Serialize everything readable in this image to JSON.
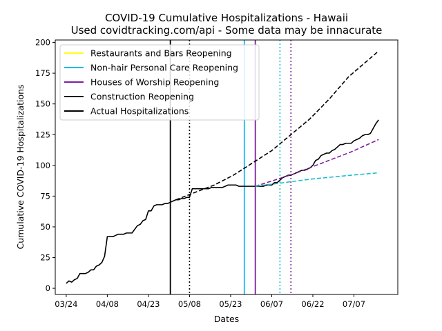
{
  "chart_data": {
    "type": "line",
    "title": "COVID-19 Cumulative Hospitalizations - Hawaii",
    "subtitle": "Used covidtracking.com/api - Some data may be innacurate",
    "xlabel": "Dates",
    "ylabel": "Cumulative COVID-19 Hospitalizations",
    "xlim": [
      "2020-03-20",
      "2020-07-23"
    ],
    "ylim": [
      -5,
      202
    ],
    "x_ticks": [
      "2020-03-24",
      "2020-04-08",
      "2020-04-23",
      "2020-05-08",
      "2020-05-23",
      "2020-06-07",
      "2020-06-22",
      "2020-07-07"
    ],
    "x_tick_labels": [
      "03/24",
      "04/08",
      "04/23",
      "05/08",
      "05/23",
      "06/07",
      "06/22",
      "07/07"
    ],
    "y_ticks": [
      0,
      25,
      50,
      75,
      100,
      125,
      150,
      175,
      200
    ],
    "legend_position": "top-left",
    "legend": [
      {
        "label": "Restaurants and Bars Reopening",
        "color": "#ffff14"
      },
      {
        "label": "Non-hair Personal Care Reopening",
        "color": "#13bbf0"
      },
      {
        "label": "Houses of Worship Reopening",
        "color": "#7e1e9c"
      },
      {
        "label": "Construction Reopening",
        "color": "#000000"
      },
      {
        "label": "Actual Hospitalizations",
        "color": "#000000"
      }
    ],
    "reopening_lines": [
      {
        "date": "2020-05-01",
        "color": "#000000",
        "style": "solid"
      },
      {
        "date": "2020-05-28",
        "color": "#13bbf0",
        "style": "solid"
      },
      {
        "date": "2020-06-01",
        "color": "#7e1e9c",
        "style": "solid"
      },
      {
        "date": "2020-05-08",
        "color": "#000000",
        "style": "dotted"
      },
      {
        "date": "2020-06-10",
        "color": "#17becf",
        "style": "dotted"
      },
      {
        "date": "2020-06-14",
        "color": "#7e1e9c",
        "style": "dotted"
      }
    ],
    "series": [
      {
        "kind": "actual",
        "color": "#000000",
        "style": "solid",
        "points": [
          [
            "2020-03-24",
            4
          ],
          [
            "2020-03-25",
            6
          ],
          [
            "2020-03-26",
            5
          ],
          [
            "2020-03-27",
            7
          ],
          [
            "2020-03-28",
            8
          ],
          [
            "2020-03-29",
            12
          ],
          [
            "2020-03-30",
            12
          ],
          [
            "2020-03-31",
            12
          ],
          [
            "2020-04-01",
            13
          ],
          [
            "2020-04-02",
            15
          ],
          [
            "2020-04-03",
            15
          ],
          [
            "2020-04-04",
            18
          ],
          [
            "2020-04-05",
            19
          ],
          [
            "2020-04-06",
            21
          ],
          [
            "2020-04-07",
            26
          ],
          [
            "2020-04-08",
            42
          ],
          [
            "2020-04-09",
            42
          ],
          [
            "2020-04-10",
            42
          ],
          [
            "2020-04-11",
            43
          ],
          [
            "2020-04-12",
            44
          ],
          [
            "2020-04-13",
            44
          ],
          [
            "2020-04-14",
            44
          ],
          [
            "2020-04-15",
            45
          ],
          [
            "2020-04-16",
            45
          ],
          [
            "2020-04-17",
            45
          ],
          [
            "2020-04-18",
            48
          ],
          [
            "2020-04-19",
            51
          ],
          [
            "2020-04-20",
            52
          ],
          [
            "2020-04-21",
            55
          ],
          [
            "2020-04-22",
            56
          ],
          [
            "2020-04-23",
            63
          ],
          [
            "2020-04-24",
            63
          ],
          [
            "2020-04-25",
            67
          ],
          [
            "2020-04-26",
            68
          ],
          [
            "2020-04-27",
            68
          ],
          [
            "2020-04-28",
            68
          ],
          [
            "2020-04-29",
            69
          ],
          [
            "2020-04-30",
            69
          ],
          [
            "2020-05-01",
            70
          ],
          [
            "2020-05-02",
            71
          ],
          [
            "2020-05-03",
            72
          ],
          [
            "2020-05-04",
            72
          ],
          [
            "2020-05-05",
            73
          ],
          [
            "2020-05-06",
            73
          ],
          [
            "2020-05-07",
            74
          ],
          [
            "2020-05-08",
            74
          ],
          [
            "2020-05-09",
            81
          ],
          [
            "2020-05-10",
            81
          ],
          [
            "2020-05-11",
            81
          ],
          [
            "2020-05-12",
            81
          ],
          [
            "2020-05-13",
            81
          ],
          [
            "2020-05-14",
            81
          ],
          [
            "2020-05-15",
            81
          ],
          [
            "2020-05-16",
            82
          ],
          [
            "2020-05-17",
            82
          ],
          [
            "2020-05-18",
            82
          ],
          [
            "2020-05-19",
            82
          ],
          [
            "2020-05-20",
            82
          ],
          [
            "2020-05-21",
            83
          ],
          [
            "2020-05-22",
            84
          ],
          [
            "2020-05-23",
            84
          ],
          [
            "2020-05-24",
            84
          ],
          [
            "2020-05-25",
            84
          ],
          [
            "2020-05-26",
            83
          ],
          [
            "2020-05-27",
            83
          ],
          [
            "2020-05-28",
            83
          ],
          [
            "2020-05-29",
            83
          ],
          [
            "2020-05-30",
            83
          ],
          [
            "2020-05-31",
            83
          ],
          [
            "2020-06-01",
            83
          ],
          [
            "2020-06-02",
            83
          ],
          [
            "2020-06-03",
            83
          ],
          [
            "2020-06-04",
            83
          ],
          [
            "2020-06-05",
            84
          ],
          [
            "2020-06-06",
            84
          ],
          [
            "2020-06-07",
            84
          ],
          [
            "2020-06-08",
            86
          ],
          [
            "2020-06-09",
            86
          ],
          [
            "2020-06-10",
            88
          ],
          [
            "2020-06-11",
            90
          ],
          [
            "2020-06-12",
            91
          ],
          [
            "2020-06-13",
            92
          ],
          [
            "2020-06-14",
            92
          ],
          [
            "2020-06-15",
            93
          ],
          [
            "2020-06-16",
            94
          ],
          [
            "2020-06-17",
            95
          ],
          [
            "2020-06-18",
            96
          ],
          [
            "2020-06-19",
            96
          ],
          [
            "2020-06-20",
            97
          ],
          [
            "2020-06-21",
            98
          ],
          [
            "2020-06-22",
            100
          ],
          [
            "2020-06-23",
            104
          ],
          [
            "2020-06-24",
            105
          ],
          [
            "2020-06-25",
            108
          ],
          [
            "2020-06-26",
            109
          ],
          [
            "2020-06-27",
            110
          ],
          [
            "2020-06-28",
            110
          ],
          [
            "2020-06-29",
            112
          ],
          [
            "2020-06-30",
            113
          ],
          [
            "2020-07-01",
            115
          ],
          [
            "2020-07-02",
            117
          ],
          [
            "2020-07-03",
            117
          ],
          [
            "2020-07-04",
            118
          ],
          [
            "2020-07-05",
            118
          ],
          [
            "2020-07-06",
            118
          ],
          [
            "2020-07-07",
            120
          ],
          [
            "2020-07-08",
            121
          ],
          [
            "2020-07-09",
            122
          ],
          [
            "2020-07-10",
            124
          ],
          [
            "2020-07-11",
            125
          ],
          [
            "2020-07-12",
            125
          ],
          [
            "2020-07-13",
            126
          ],
          [
            "2020-07-14",
            130
          ],
          [
            "2020-07-15",
            134
          ],
          [
            "2020-07-16",
            137
          ]
        ]
      },
      {
        "kind": "projection",
        "color": "#000000",
        "style": "dashed",
        "points": [
          [
            "2020-05-03",
            72
          ],
          [
            "2020-05-10",
            78
          ],
          [
            "2020-05-17",
            84
          ],
          [
            "2020-05-24",
            92
          ],
          [
            "2020-05-31",
            102
          ],
          [
            "2020-06-07",
            112
          ],
          [
            "2020-06-14",
            125
          ],
          [
            "2020-06-21",
            138
          ],
          [
            "2020-06-28",
            154
          ],
          [
            "2020-07-05",
            172
          ],
          [
            "2020-07-16",
            193
          ]
        ]
      },
      {
        "kind": "projection",
        "color": "#7e1e9c",
        "style": "dashed",
        "points": [
          [
            "2020-06-01",
            83
          ],
          [
            "2020-06-08",
            88
          ],
          [
            "2020-06-15",
            93
          ],
          [
            "2020-06-22",
            99
          ],
          [
            "2020-06-29",
            105
          ],
          [
            "2020-07-06",
            111
          ],
          [
            "2020-07-16",
            121
          ]
        ]
      },
      {
        "kind": "projection",
        "color": "#17becf",
        "style": "dashed",
        "points": [
          [
            "2020-06-01",
            83
          ],
          [
            "2020-06-08",
            85
          ],
          [
            "2020-06-15",
            87
          ],
          [
            "2020-06-22",
            89
          ],
          [
            "2020-06-29",
            90.5
          ],
          [
            "2020-07-06",
            92
          ],
          [
            "2020-07-16",
            94
          ]
        ]
      }
    ]
  }
}
